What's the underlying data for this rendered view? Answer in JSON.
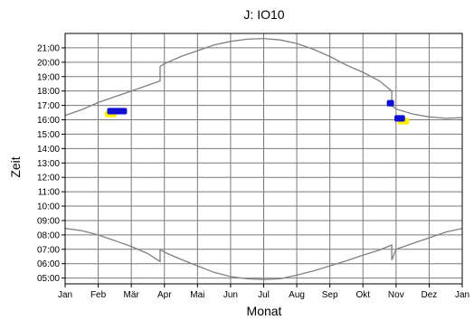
{
  "chart_data": {
    "type": "line",
    "title": "J: IO10",
    "xlabel": "Monat",
    "ylabel": "Zeit",
    "x_ticks": [
      "Jan",
      "Feb",
      "Mär",
      "Apr",
      "Mai",
      "Jun",
      "Jul",
      "Aug",
      "Sep",
      "Okt",
      "Nov",
      "Dez",
      "Jan"
    ],
    "y_ticks": [
      "05:00",
      "06:00",
      "07:00",
      "08:00",
      "09:00",
      "10:00",
      "11:00",
      "12:00",
      "13:00",
      "14:00",
      "15:00",
      "16:00",
      "17:00",
      "18:00",
      "19:00",
      "20:00",
      "21:00"
    ],
    "xlim": [
      0,
      12
    ],
    "ylim": [
      4.6,
      22.0
    ],
    "grid": true,
    "series": [
      {
        "role": "sunset",
        "color": "#808080",
        "x": [
          0,
          0.5,
          1,
          1.5,
          2,
          2.5,
          2.87,
          2.87,
          3,
          3.5,
          4,
          4.5,
          5,
          5.5,
          6,
          6.5,
          7,
          7.5,
          8,
          8.5,
          9,
          9.5,
          9.87,
          9.87,
          10,
          10.5,
          11,
          11.5,
          12
        ],
        "y": [
          16.3,
          16.7,
          17.2,
          17.6,
          18.0,
          18.4,
          18.7,
          19.7,
          19.9,
          20.4,
          20.8,
          21.2,
          21.45,
          21.6,
          21.65,
          21.55,
          21.3,
          20.9,
          20.4,
          19.8,
          19.3,
          18.7,
          18.0,
          17.0,
          16.75,
          16.4,
          16.2,
          16.1,
          16.15
        ]
      },
      {
        "role": "sunrise",
        "color": "#808080",
        "x": [
          0,
          0.5,
          1,
          1.5,
          2,
          2.5,
          2.87,
          2.87,
          3,
          3.5,
          4,
          4.5,
          5,
          5.5,
          6,
          6.5,
          7,
          7.5,
          8,
          8.5,
          9,
          9.5,
          9.87,
          9.87,
          10,
          10.5,
          11,
          11.5,
          12
        ],
        "y": [
          8.45,
          8.3,
          8.0,
          7.6,
          7.2,
          6.7,
          6.15,
          7.0,
          6.8,
          6.3,
          5.85,
          5.4,
          5.1,
          4.95,
          4.9,
          4.95,
          5.2,
          5.5,
          5.85,
          6.2,
          6.6,
          6.95,
          7.3,
          6.25,
          7.0,
          7.4,
          7.8,
          8.2,
          8.45
        ]
      }
    ],
    "marks": [
      {
        "color": "#ffee00",
        "x": 1.2,
        "y": 16.4,
        "w": 0.35,
        "h": 0.45
      },
      {
        "color": "#1010d0",
        "x": 1.27,
        "y": 16.6,
        "w": 0.6,
        "h": 0.45
      },
      {
        "color": "#1010d0",
        "x": 9.72,
        "y": 17.15,
        "w": 0.22,
        "h": 0.45
      },
      {
        "color": "#ffee00",
        "x": 10.05,
        "y": 15.9,
        "w": 0.35,
        "h": 0.45
      },
      {
        "color": "#1010d0",
        "x": 9.95,
        "y": 16.1,
        "w": 0.32,
        "h": 0.45
      }
    ]
  }
}
